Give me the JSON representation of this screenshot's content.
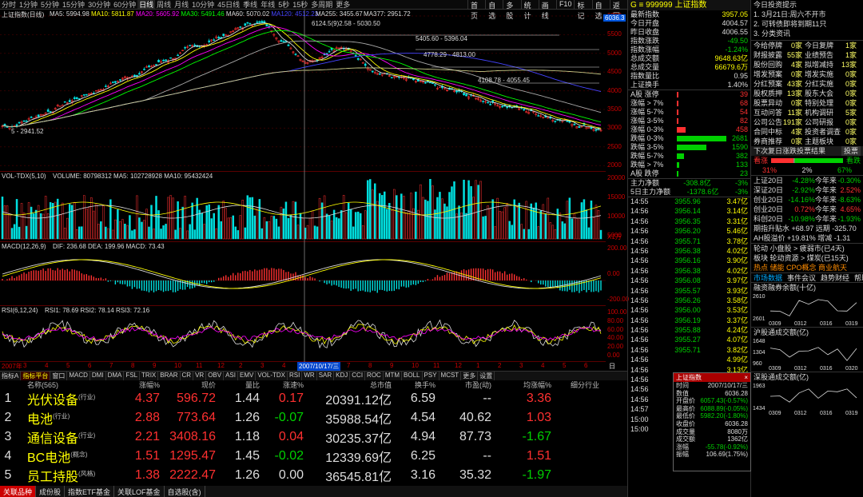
{
  "topbar": {
    "periods": [
      "分时",
      "1分钟",
      "5分钟",
      "15分钟",
      "30分钟",
      "60分钟",
      "日线",
      "周线",
      "月线",
      "10分钟",
      "45日线",
      "季线",
      "年线",
      "5秒",
      "15秒",
      "多周期",
      "更多"
    ],
    "tools": [
      "首页",
      "自选",
      "多股",
      "统计",
      "画线",
      "F10",
      "标记",
      "自选",
      "返回"
    ]
  },
  "kline": {
    "title": "上证指数(日线)",
    "ma": [
      "MA5: 5994.98",
      "MA10: 5811.87",
      "MA20: 5605.92",
      "MA30: 5491.46",
      "MA60: 5070.02",
      "MA120: 4512.23"
    ],
    "ma2": [
      "MA255: 3455.67",
      "MA377: 2951.72"
    ],
    "notes": [
      "6124.5(9)2.58 - 5030.50",
      "5405.60 - 5396.04",
      "4778.29 - 4813.00",
      "4108.78 - 4055.45",
      "5 - 2941.52"
    ],
    "ticks": [
      "6000",
      "5500",
      "5000",
      "4500",
      "4000",
      "3500",
      "3000",
      "2500",
      "2000"
    ],
    "hl": "6036.3"
  },
  "vol": {
    "title": "VOL-TDX(5,10)",
    "vals": "VOLUME: 80798312  MA5: 102728928  MA10: 95432424",
    "ticks": [
      "20000",
      "15000",
      "10000",
      "5000"
    ],
    "unit": "X1万"
  },
  "macd": {
    "title": "MACD(12,26,9)",
    "vals": "DIF: 236.68  DEA: 199.96  MACD: 73.43",
    "ticks": [
      "200.00",
      "0.00",
      "-200.00"
    ]
  },
  "rsi": {
    "title": "RSI(6,12,24)",
    "vals": "RSI1: 78.69  RSI2: 78.14  RSI3: 72.16",
    "ticks": [
      "100.00",
      "80.00",
      "60.00",
      "40.00",
      "20.00",
      "0.00"
    ]
  },
  "datebar": {
    "labels": [
      "2007年",
      "3",
      "4",
      "5",
      "6",
      "7",
      "8",
      "9",
      "10",
      "11",
      "12",
      "2",
      "3",
      "4",
      "5",
      "6",
      "7",
      "8",
      "9",
      "10",
      "11",
      "12",
      "1",
      "2",
      "3",
      "4",
      "5",
      "6"
    ],
    "cursor": "2007/10/17/三",
    "right": "日线"
  },
  "tabs": [
    "指标A",
    "指标平台",
    "窗口",
    "MACD",
    "DMI",
    "DMA",
    "FSL",
    "TRIX",
    "BRAR",
    "CR",
    "VR",
    "OBV",
    "ASI",
    "EMV",
    "VOL-TDX",
    "RSI",
    "WR",
    "SAR",
    "KDJ",
    "CCI",
    "ROC",
    "MTM",
    "BOLL",
    "PSY",
    "MCST",
    "更多",
    "设置"
  ],
  "tableHead": {
    "name": "名称(565)",
    "chg": "涨幅%",
    "price": "现价",
    "vr": "量比",
    "speed": "涨速%",
    "amt": "总市值",
    "turn": "换手%",
    "pe": "市盈(动)",
    "avg": "均涨幅%",
    "sub": "细分行业"
  },
  "rows": [
    {
      "i": "1",
      "name": "光伏设备",
      "tag": "(行业)",
      "chg": "4.37",
      "price": "596.72",
      "vr": "1.44",
      "speed": "0.17",
      "amt": "20391.12亿",
      "turn": "6.59",
      "pe": "--",
      "avg": "3.36"
    },
    {
      "i": "2",
      "name": "电池",
      "tag": "(行业)",
      "chg": "2.88",
      "price": "773.64",
      "vr": "1.26",
      "speed": "-0.07",
      "amt": "35988.54亿",
      "turn": "4.54",
      "pe": "40.62",
      "avg": "1.03"
    },
    {
      "i": "3",
      "name": "通信设备",
      "tag": "(行业)",
      "chg": "2.21",
      "price": "3408.16",
      "vr": "1.18",
      "speed": "0.04",
      "amt": "30235.37亿",
      "turn": "4.94",
      "pe": "87.73",
      "avg": "-1.67"
    },
    {
      "i": "4",
      "name": "BC电池",
      "tag": "(概念)",
      "chg": "1.51",
      "price": "1295.47",
      "vr": "1.45",
      "speed": "-0.02",
      "amt": "12339.69亿",
      "turn": "6.25",
      "pe": "--",
      "avg": "1.51"
    },
    {
      "i": "5",
      "name": "员工持股",
      "tag": "(风格)",
      "chg": "1.38",
      "price": "2222.47",
      "vr": "1.26",
      "speed": "0.00",
      "amt": "36545.81亿",
      "turn": "3.16",
      "pe": "35.32",
      "avg": "-1.97"
    }
  ],
  "bottom": [
    "关联品种",
    "成份股",
    "指数ETF基金",
    "关联LOF基金",
    "自选股(含)"
  ],
  "mid": {
    "head": "G  ≡ 999999  上证指数",
    "quote": [
      [
        "最新指数",
        "3957.05"
      ],
      [
        "今日开盘",
        "4004.57"
      ],
      [
        "昨日收盘",
        "4006.55"
      ],
      [
        "指数涨跌",
        "-49.50"
      ],
      [
        "指数涨幅",
        "-1.24%"
      ],
      [
        "总成交额",
        "9648.63亿"
      ],
      [
        "总成交量",
        "66679.6万"
      ],
      [
        "指数量比",
        "0.95"
      ],
      [
        "上证换手",
        "1.40%"
      ]
    ],
    "dist": [
      [
        "A股 涨停",
        "39"
      ],
      [
        "涨幅 > 7%",
        "68"
      ],
      [
        "涨幅 5-7%",
        "54"
      ],
      [
        "涨幅 3-5%",
        "82"
      ],
      [
        "涨幅 0-3%",
        "458"
      ],
      [
        "跌幅 0-3%",
        "2681"
      ],
      [
        "跌幅 3-5%",
        "1590"
      ],
      [
        "跌幅 5-7%",
        "382"
      ],
      [
        "跌幅 > 7%",
        "133"
      ],
      [
        "A股 跌停",
        "23"
      ]
    ],
    "flow": [
      [
        "主力净额",
        "-308.8亿",
        "-3%"
      ],
      [
        "5日主力净额",
        "-1378.6亿",
        "-3%"
      ]
    ],
    "ticks": [
      [
        "14:55",
        "3955.96",
        "3.47亿"
      ],
      [
        "14:56",
        "3956.14",
        "3.14亿"
      ],
      [
        "14:56",
        "3956.35",
        "3.31亿"
      ],
      [
        "14:56",
        "3956.20",
        "5.46亿"
      ],
      [
        "14:56",
        "3955.71",
        "3.78亿"
      ],
      [
        "14:56",
        "3956.38",
        "4.02亿"
      ],
      [
        "14:56",
        "3956.16",
        "3.90亿"
      ],
      [
        "14:56",
        "3956.38",
        "4.02亿"
      ],
      [
        "14:56",
        "3956.08",
        "3.97亿"
      ],
      [
        "14:56",
        "3955.57",
        "3.93亿"
      ],
      [
        "14:56",
        "3956.26",
        "3.58亿"
      ],
      [
        "14:56",
        "3956.00",
        "3.53亿"
      ],
      [
        "14:56",
        "3956.19",
        "3.37亿"
      ],
      [
        "14:56",
        "3955.88",
        "4.24亿"
      ],
      [
        "14:56",
        "3955.27",
        "4.07亿"
      ],
      [
        "14:56",
        "3955.71",
        "3.82亿"
      ],
      [
        "14:56",
        "",
        "4.99亿"
      ],
      [
        "14:56",
        "",
        "3.13亿"
      ],
      [
        "14:56",
        "",
        "3.70亿"
      ],
      [
        "14:56",
        "",
        "4.37亿"
      ],
      [
        "14:56",
        "",
        "4.43亿"
      ],
      [
        "14:57",
        "",
        "5.37亿"
      ],
      [
        "15:00",
        "",
        "43.29亿"
      ],
      [
        "15:00",
        "3957.05",
        "9.85亿"
      ]
    ]
  },
  "tooltip": {
    "title": "上证指数",
    "rows": [
      [
        "时间",
        "2007/10/17/三"
      ],
      [
        "数值",
        "6036.28"
      ],
      [
        "开盘价",
        "6057.43(-0.57%)"
      ],
      [
        "最高价",
        "6088.89(-0.05%)"
      ],
      [
        "最低价",
        "5982.20(-1.80%)"
      ],
      [
        "收盘价",
        "6036.28"
      ],
      [
        "成交量",
        "8080万"
      ],
      [
        "成交额",
        "1362亿"
      ],
      [
        "涨幅",
        "-55.78(-0.92%)"
      ],
      [
        "振幅",
        "106.69(1.75%)"
      ]
    ]
  },
  "right": {
    "notice": "今日投资提示",
    "items": [
      "1. 3月21日:周六不开市",
      "2. 可转债即将到期11只",
      "3. 分类资讯"
    ],
    "stats": [
      [
        "今给停牌",
        "0家",
        "今日复牌",
        "1家"
      ],
      [
        "财报披露",
        "55家",
        "业绩预告",
        "1家"
      ],
      [
        "股份回购",
        "4家",
        "拟增减持",
        "13家"
      ],
      [
        "增发预案",
        "0家",
        "增发实施",
        "0家"
      ],
      [
        "分红预案",
        "43家",
        "分红实施",
        "0家"
      ],
      [
        "股权质押",
        "13家",
        "股东大会",
        "0家"
      ],
      [
        "股票异动",
        "0家",
        "特别处理",
        "0家"
      ],
      [
        "互动问答",
        "11家",
        "机构调研",
        "5家"
      ],
      [
        "公司公告",
        "191家",
        "公司研报",
        "0家"
      ],
      [
        "合同中标",
        "4家",
        "投资者调查",
        "0家"
      ],
      [
        "券商推荐",
        "0家",
        "主题板块",
        "0家"
      ]
    ],
    "limit": "下次复日涨跌投票结果",
    "vote": "投票",
    "votepct": [
      "31%",
      "2%",
      "67%"
    ],
    "votelbl": [
      "看涨",
      "看跌"
    ],
    "perf": [
      [
        "上证20日",
        "-4.28%",
        "今年来",
        "-0.30%"
      ],
      [
        "深证20日",
        "-2.92%",
        "今年来",
        "2.52%"
      ],
      [
        "创业20日",
        "-14.16%",
        "今年来",
        "-8.63%"
      ],
      [
        "创业20日",
        "0.72%",
        "今年来",
        "4.65%"
      ],
      [
        "科创20日",
        "-10.98%",
        "今年来",
        "-1.93%"
      ]
    ],
    "extra": [
      "期指升贴水 +68.97 远期 -325.70",
      "AH股溢价 +19.81% 增减 -1.31"
    ],
    "news": [
      "轮动  小盘股 > 疲弱市(已4天)",
      "板块  轮动资源 > 煤炭(已15天)",
      "热点  储能 CPO概念 商业航天"
    ],
    "links": [
      "市场数据",
      "事件会议",
      "趋势财经",
      "帮助"
    ],
    "mini": [
      {
        "title": "融资融券余额(十亿)",
        "y": [
          "2610",
          "2601"
        ],
        "x": [
          "0309",
          "0312",
          "0316",
          "0319"
        ]
      },
      {
        "title": "沪股通成交额(亿)",
        "y": [
          "1648",
          "1304",
          "960"
        ],
        "x": [
          "0309",
          "0312",
          "0316",
          "0320"
        ]
      },
      {
        "title": "深股通成交额(亿)",
        "y": [
          "1963",
          "1434"
        ],
        "x": [
          "0309",
          "0312",
          "0316",
          "0319"
        ]
      }
    ]
  },
  "colors": {
    "up": "#ff3030",
    "down": "#00d000",
    "grid": "#5a0000",
    "yellow": "#ffff00"
  }
}
